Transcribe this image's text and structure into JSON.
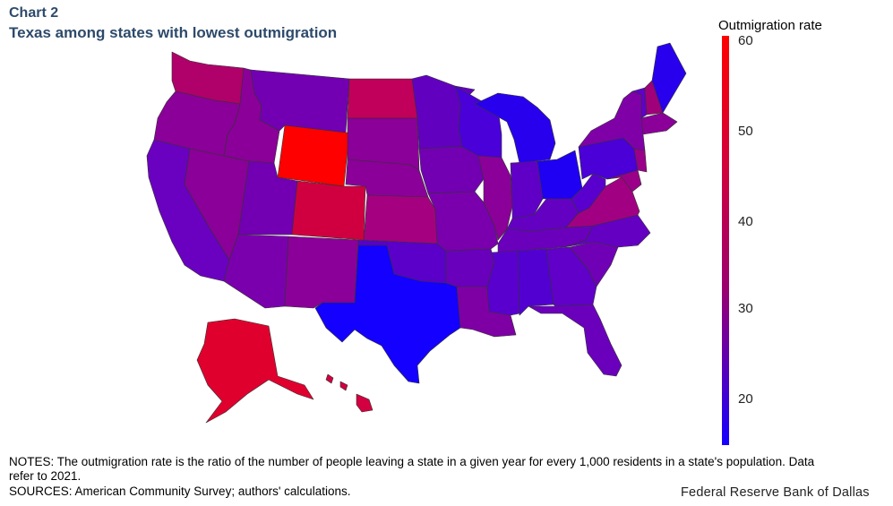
{
  "header": {
    "label": "Chart 2",
    "title": "Texas among states with lowest outmigration"
  },
  "legend": {
    "title": "Outmigration rate",
    "ticks": [
      "60",
      "50",
      "40",
      "30",
      "20"
    ],
    "color_high": "#ff0000",
    "color_low": "#1400ff"
  },
  "notes": "NOTES: The outmigration rate is the ratio of the number of people leaving a state in a given year for every 1,000 residents in a state's population. Data refer to 2021.",
  "sources": "SOURCES: American Community Survey; authors' calculations.",
  "credit": "Federal Reserve Bank of Dallas",
  "colors": {
    "WA": "#b0006a",
    "OR": "#8a0098",
    "CA": "#6a00c0",
    "NV": "#8a0098",
    "ID": "#8a0098",
    "MT": "#7200b2",
    "WY": "#ff0000",
    "UT": "#7200b2",
    "AZ": "#7a00ad",
    "CO": "#d00040",
    "NM": "#8a0098",
    "ND": "#c0005a",
    "SD": "#8a0098",
    "NE": "#8a0098",
    "KS": "#a50080",
    "OK": "#5a00c8",
    "TX": "#1400ff",
    "MN": "#6200c0",
    "IA": "#7200b2",
    "MO": "#7a00ad",
    "AR": "#6800bc",
    "LA": "#7e00a4",
    "WI": "#4a00d8",
    "IL": "#8a0098",
    "MI": "#2800ee",
    "IN": "#6000c6",
    "OH": "#2000f2",
    "KY": "#6400c2",
    "TN": "#6a00bc",
    "MS": "#5a00ce",
    "AL": "#5200d2",
    "GA": "#6000c8",
    "FL": "#6a00bc",
    "SC": "#7000b6",
    "NC": "#6400c2",
    "VA": "#a20082",
    "WV": "#5a00ce",
    "PA": "#4a00d6",
    "NY": "#8000a8",
    "VT": "#6000c8",
    "NH": "#a0007a",
    "ME": "#2800ee",
    "MA": "#8a0098",
    "NJ": "#9a0088",
    "MD": "#9a0088",
    "AK": "#e0002e",
    "HI": "#d20040"
  }
}
